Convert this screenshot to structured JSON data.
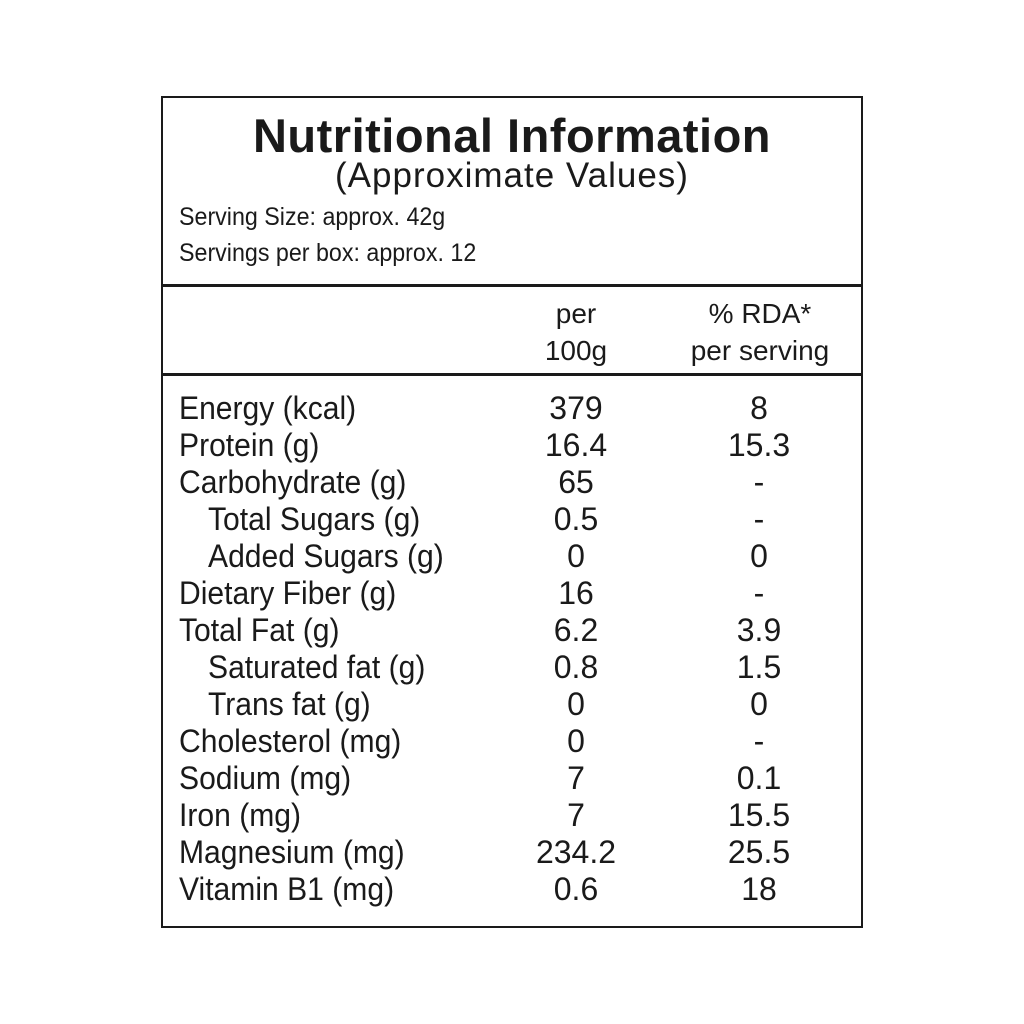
{
  "label": {
    "title": "Nutritional Information",
    "subtitle": "(Approximate Values)",
    "serving_size": "Serving Size: approx. 42g",
    "servings_per_box": "Servings per box: approx. 12",
    "columns": {
      "per_100g_line1": "per",
      "per_100g_line2": "100g",
      "rda_line1": "% RDA*",
      "rda_line2": "per serving"
    },
    "rows": [
      {
        "name": "Energy (kcal)",
        "per_100g": "379",
        "rda": "8",
        "indent": false
      },
      {
        "name": "Protein (g)",
        "per_100g": "16.4",
        "rda": "15.3",
        "indent": false
      },
      {
        "name": "Carbohydrate (g)",
        "per_100g": "65",
        "rda": "-",
        "indent": false
      },
      {
        "name": "Total Sugars (g)",
        "per_100g": "0.5",
        "rda": "-",
        "indent": true
      },
      {
        "name": "Added Sugars (g)",
        "per_100g": "0",
        "rda": "0",
        "indent": true
      },
      {
        "name": "Dietary Fiber (g)",
        "per_100g": "16",
        "rda": "-",
        "indent": false
      },
      {
        "name": "Total Fat (g)",
        "per_100g": "6.2",
        "rda": "3.9",
        "indent": false
      },
      {
        "name": "Saturated fat (g)",
        "per_100g": "0.8",
        "rda": "1.5",
        "indent": true
      },
      {
        "name": "Trans fat (g)",
        "per_100g": "0",
        "rda": "0",
        "indent": true
      },
      {
        "name": "Cholesterol (mg)",
        "per_100g": "0",
        "rda": "-",
        "indent": false
      },
      {
        "name": "Sodium (mg)",
        "per_100g": "7",
        "rda": "0.1",
        "indent": false
      },
      {
        "name": "Iron (mg)",
        "per_100g": "7",
        "rda": "15.5",
        "indent": false
      },
      {
        "name": "Magnesium (mg)",
        "per_100g": "234.2",
        "rda": "25.5",
        "indent": false
      },
      {
        "name": "Vitamin B1 (mg)",
        "per_100g": "0.6",
        "rda": "18",
        "indent": false
      }
    ]
  }
}
